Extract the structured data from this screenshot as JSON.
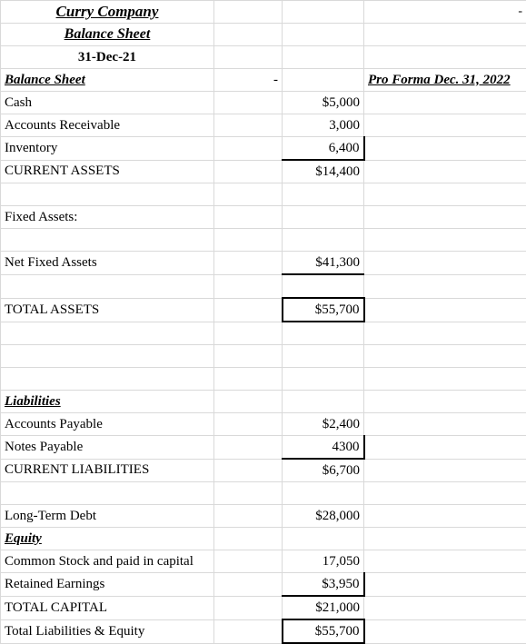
{
  "layout": {
    "background_color": "#ffffff",
    "grid_color": "#d9d9d9",
    "rule_color": "#000000",
    "font_family": "Times New Roman",
    "base_font_size_pt": 12
  },
  "header": {
    "company": "Curry Company",
    "title": "Balance Sheet",
    "date": "31-Dec-21"
  },
  "col_headers": {
    "left": "Balance Sheet",
    "col_b_dash": "-",
    "proforma": "Pro Forma Dec. 31, 2022",
    "top_right_dash": "-"
  },
  "assets": {
    "cash": {
      "label": "Cash",
      "value": "$5,000"
    },
    "ar": {
      "label": "Accounts Receivable",
      "value": "3,000"
    },
    "inv": {
      "label": "Inventory",
      "value": "6,400"
    },
    "current_assets": {
      "label": "CURRENT ASSETS",
      "value": "$14,400"
    },
    "fixed_header": "Fixed Assets:",
    "net_fixed": {
      "label": "Net Fixed Assets",
      "value": "$41,300"
    },
    "total_assets": {
      "label": "TOTAL ASSETS",
      "value": "$55,700"
    }
  },
  "liabilities": {
    "section": "Liabilities",
    "ap": {
      "label": "Accounts Payable",
      "value": "$2,400"
    },
    "np": {
      "label": "Notes Payable",
      "value": "4300"
    },
    "current_liab": {
      "label": "CURRENT LIABILITIES",
      "value": "$6,700"
    },
    "ltd": {
      "label": "Long-Term Debt",
      "value": "$28,000"
    }
  },
  "equity": {
    "section": "Equity",
    "common": {
      "label": "Common Stock and paid in capital",
      "value": "17,050"
    },
    "retained": {
      "label": "Retained Earnings",
      "value": "$3,950"
    },
    "total_capital": {
      "label": "TOTAL CAPITAL",
      "value": "$21,000"
    },
    "total_le": {
      "label": "Total Liabilities & Equity",
      "value": "$55,700"
    }
  }
}
